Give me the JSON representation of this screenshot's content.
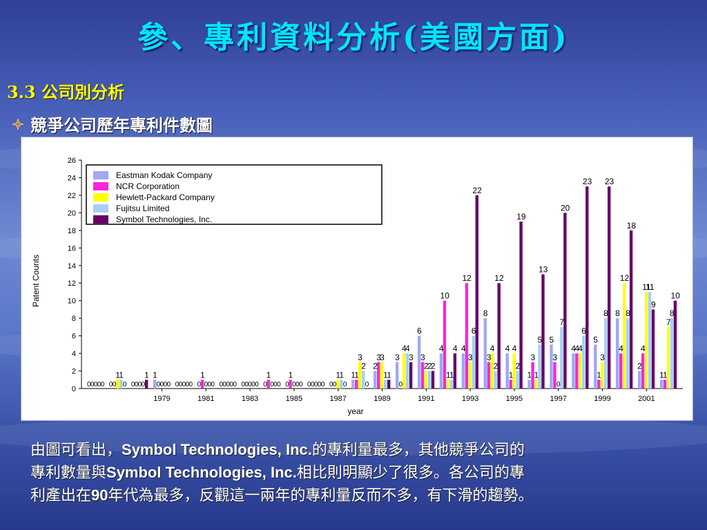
{
  "slide": {
    "title": "參、專利資料分析(美國方面)",
    "section": "3.3 公司別分析",
    "bullet": "競爭公司歷年專利件數圖"
  },
  "caption": {
    "line1_pre": "由圖可看出，",
    "line1_bold": "Symbol Technologies, Inc.",
    "line1_post": "的專利量最多，其他競爭公司的",
    "line2_pre": "專利數量與",
    "line2_bold": "Symbol Technologies, Inc.",
    "line2_post": "相比則明顯少了很多。各公司的專",
    "line3_pre": "利產出在",
    "line3_bold": "90",
    "line3_post": "年代為最多，反觀這一兩年的專利量反而不多，有下滑的趨勢。"
  },
  "chart_data": {
    "type": "bar",
    "title": "",
    "xlabel": "year",
    "ylabel": "Patent Counts",
    "ylim": [
      0,
      26
    ],
    "yticks": [
      0,
      2,
      4,
      6,
      8,
      10,
      12,
      14,
      16,
      18,
      20,
      22,
      24,
      26
    ],
    "categories": [
      1976,
      1977,
      1978,
      1979,
      1980,
      1981,
      1982,
      1983,
      1984,
      1985,
      1986,
      1987,
      1988,
      1989,
      1990,
      1991,
      1992,
      1993,
      1994,
      1995,
      1996,
      1997,
      1998,
      1999,
      2000,
      2001,
      2002
    ],
    "xtick_labels": [
      "1979",
      "1981",
      "1983",
      "1985",
      "1987",
      "1989",
      "1991",
      "1993",
      "1995",
      "1997",
      "1999",
      "2001"
    ],
    "legend_position": "top-left",
    "series": [
      {
        "name": "Eastman Kodak Company",
        "color": "#a0a8f0",
        "values": [
          0,
          0,
          0,
          1,
          0,
          0,
          0,
          0,
          0,
          0,
          0,
          0,
          1,
          2,
          3,
          6,
          4,
          4,
          8,
          4,
          1,
          5,
          4,
          5,
          8,
          2,
          1
        ]
      },
      {
        "name": "NCR Corporation",
        "color": "#ff22dd",
        "values": [
          0,
          0,
          0,
          0,
          0,
          1,
          0,
          0,
          1,
          1,
          0,
          0,
          1,
          3,
          0,
          3,
          10,
          12,
          3,
          1,
          3,
          3,
          4,
          1,
          4,
          4,
          1
        ]
      },
      {
        "name": "Hewlett-Packard Company",
        "color": "#ffff00",
        "values": [
          0,
          1,
          0,
          0,
          0,
          0,
          0,
          0,
          0,
          0,
          0,
          1,
          3,
          3,
          4,
          2,
          1,
          3,
          4,
          4,
          1,
          0,
          4,
          3,
          12,
          11,
          7
        ]
      },
      {
        "name": "Fujitsu Limited",
        "color": "#a8d0f0",
        "values": [
          0,
          1,
          0,
          0,
          0,
          0,
          0,
          0,
          0,
          0,
          0,
          1,
          2,
          1,
          4,
          2,
          1,
          6,
          2,
          2,
          5,
          7,
          6,
          8,
          8,
          11,
          8
        ]
      },
      {
        "name": "Symbol Technologies, Inc.",
        "color": "#660066",
        "values": [
          0,
          0,
          1,
          0,
          0,
          0,
          0,
          0,
          0,
          0,
          0,
          0,
          0,
          1,
          3,
          2,
          4,
          22,
          12,
          19,
          13,
          20,
          23,
          23,
          18,
          9,
          10
        ]
      }
    ]
  }
}
